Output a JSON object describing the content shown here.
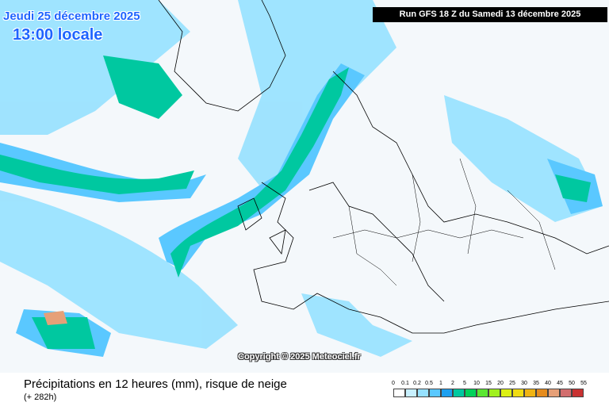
{
  "header": {
    "date": "Jeudi 25 décembre 2025",
    "time": "13:00 locale",
    "run": "Run GFS 18 Z du Samedi 13 décembre 2025"
  },
  "copyright": "Copyright © 2025 Meteociel.fr",
  "footer": {
    "title": "Précipitations en 12 heures (mm), risque de neige",
    "lead": "(+ 282h)"
  },
  "legend": {
    "labels": [
      "0",
      "0.1",
      "0.2",
      "0.5",
      "1",
      "2",
      "5",
      "10",
      "15",
      "20",
      "25",
      "30",
      "35",
      "40",
      "45",
      "50",
      "55"
    ],
    "colors": [
      "#ffffff",
      "#c8f0ff",
      "#96e1ff",
      "#5ac8ff",
      "#1ea0f0",
      "#00c8a0",
      "#00d25a",
      "#5ae632",
      "#a0f01e",
      "#dcf014",
      "#f0dc14",
      "#f0b414",
      "#e68c1e",
      "#e6a078",
      "#d26e6e",
      "#c83232"
    ]
  }
}
